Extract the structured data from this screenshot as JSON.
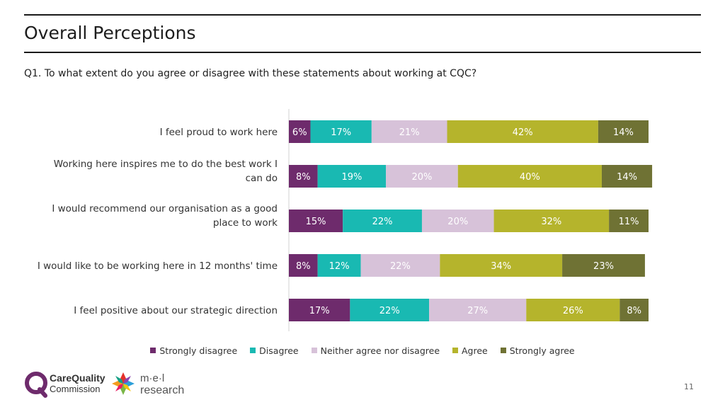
{
  "header": {
    "title": "Overall Perceptions",
    "question": "Q1. To what extent do you agree or disagree with these statements about working at CQC?"
  },
  "colors": {
    "strongly_disagree": "#6e2b6c",
    "disagree": "#19b9b2",
    "neither": "#d7c2d9",
    "agree": "#b5b42c",
    "strongly_agree": "#6f7234"
  },
  "chart_data": {
    "type": "bar",
    "orientation": "horizontal-stacked-100",
    "categories": [
      [
        "I feel proud to work here"
      ],
      [
        "Working here inspires me to do the best work I",
        "can do"
      ],
      [
        "I would recommend our organisation as a good",
        "place to work"
      ],
      [
        "I would like to be working here in 12 months' time"
      ],
      [
        "I feel positive about our strategic direction"
      ]
    ],
    "series": [
      {
        "name": "Strongly disagree",
        "color": "#6e2b6c",
        "text_color": "#ffffff",
        "values": [
          6,
          8,
          15,
          8,
          17
        ]
      },
      {
        "name": "Disagree",
        "color": "#19b9b2",
        "text_color": "#ffffff",
        "values": [
          17,
          19,
          22,
          12,
          22
        ]
      },
      {
        "name": "Neither agree nor disagree",
        "color": "#d7c2d9",
        "text_color": "#ffffff",
        "values": [
          21,
          20,
          20,
          22,
          27
        ]
      },
      {
        "name": "Agree",
        "color": "#b5b42c",
        "text_color": "#ffffff",
        "values": [
          42,
          40,
          32,
          34,
          26
        ]
      },
      {
        "name": "Strongly agree",
        "color": "#6f7234",
        "text_color": "#ffffff",
        "values": [
          14,
          14,
          11,
          23,
          8
        ]
      }
    ],
    "labels": [
      [
        "6%",
        "17%",
        "21%",
        "42%",
        "14%"
      ],
      [
        "8%",
        "19%",
        "20%",
        "40%",
        "14%"
      ],
      [
        "15%",
        "22%",
        "20%",
        "32%",
        "11%"
      ],
      [
        "8%",
        "12%",
        "22%",
        "34%",
        "23%"
      ],
      [
        "17%",
        "22%",
        "27%",
        "26%",
        "8%"
      ]
    ],
    "legend_position": "bottom"
  },
  "legend": {
    "items": [
      "Strongly disagree",
      "Disagree",
      "Neither agree nor disagree",
      "Agree",
      "Strongly agree"
    ]
  },
  "footer": {
    "logo_cqc_line1": "CareQuality",
    "logo_cqc_line2": "Commission",
    "logo_mel_line1": "m·e·l",
    "logo_mel_line2": "research",
    "page_number": "11"
  }
}
